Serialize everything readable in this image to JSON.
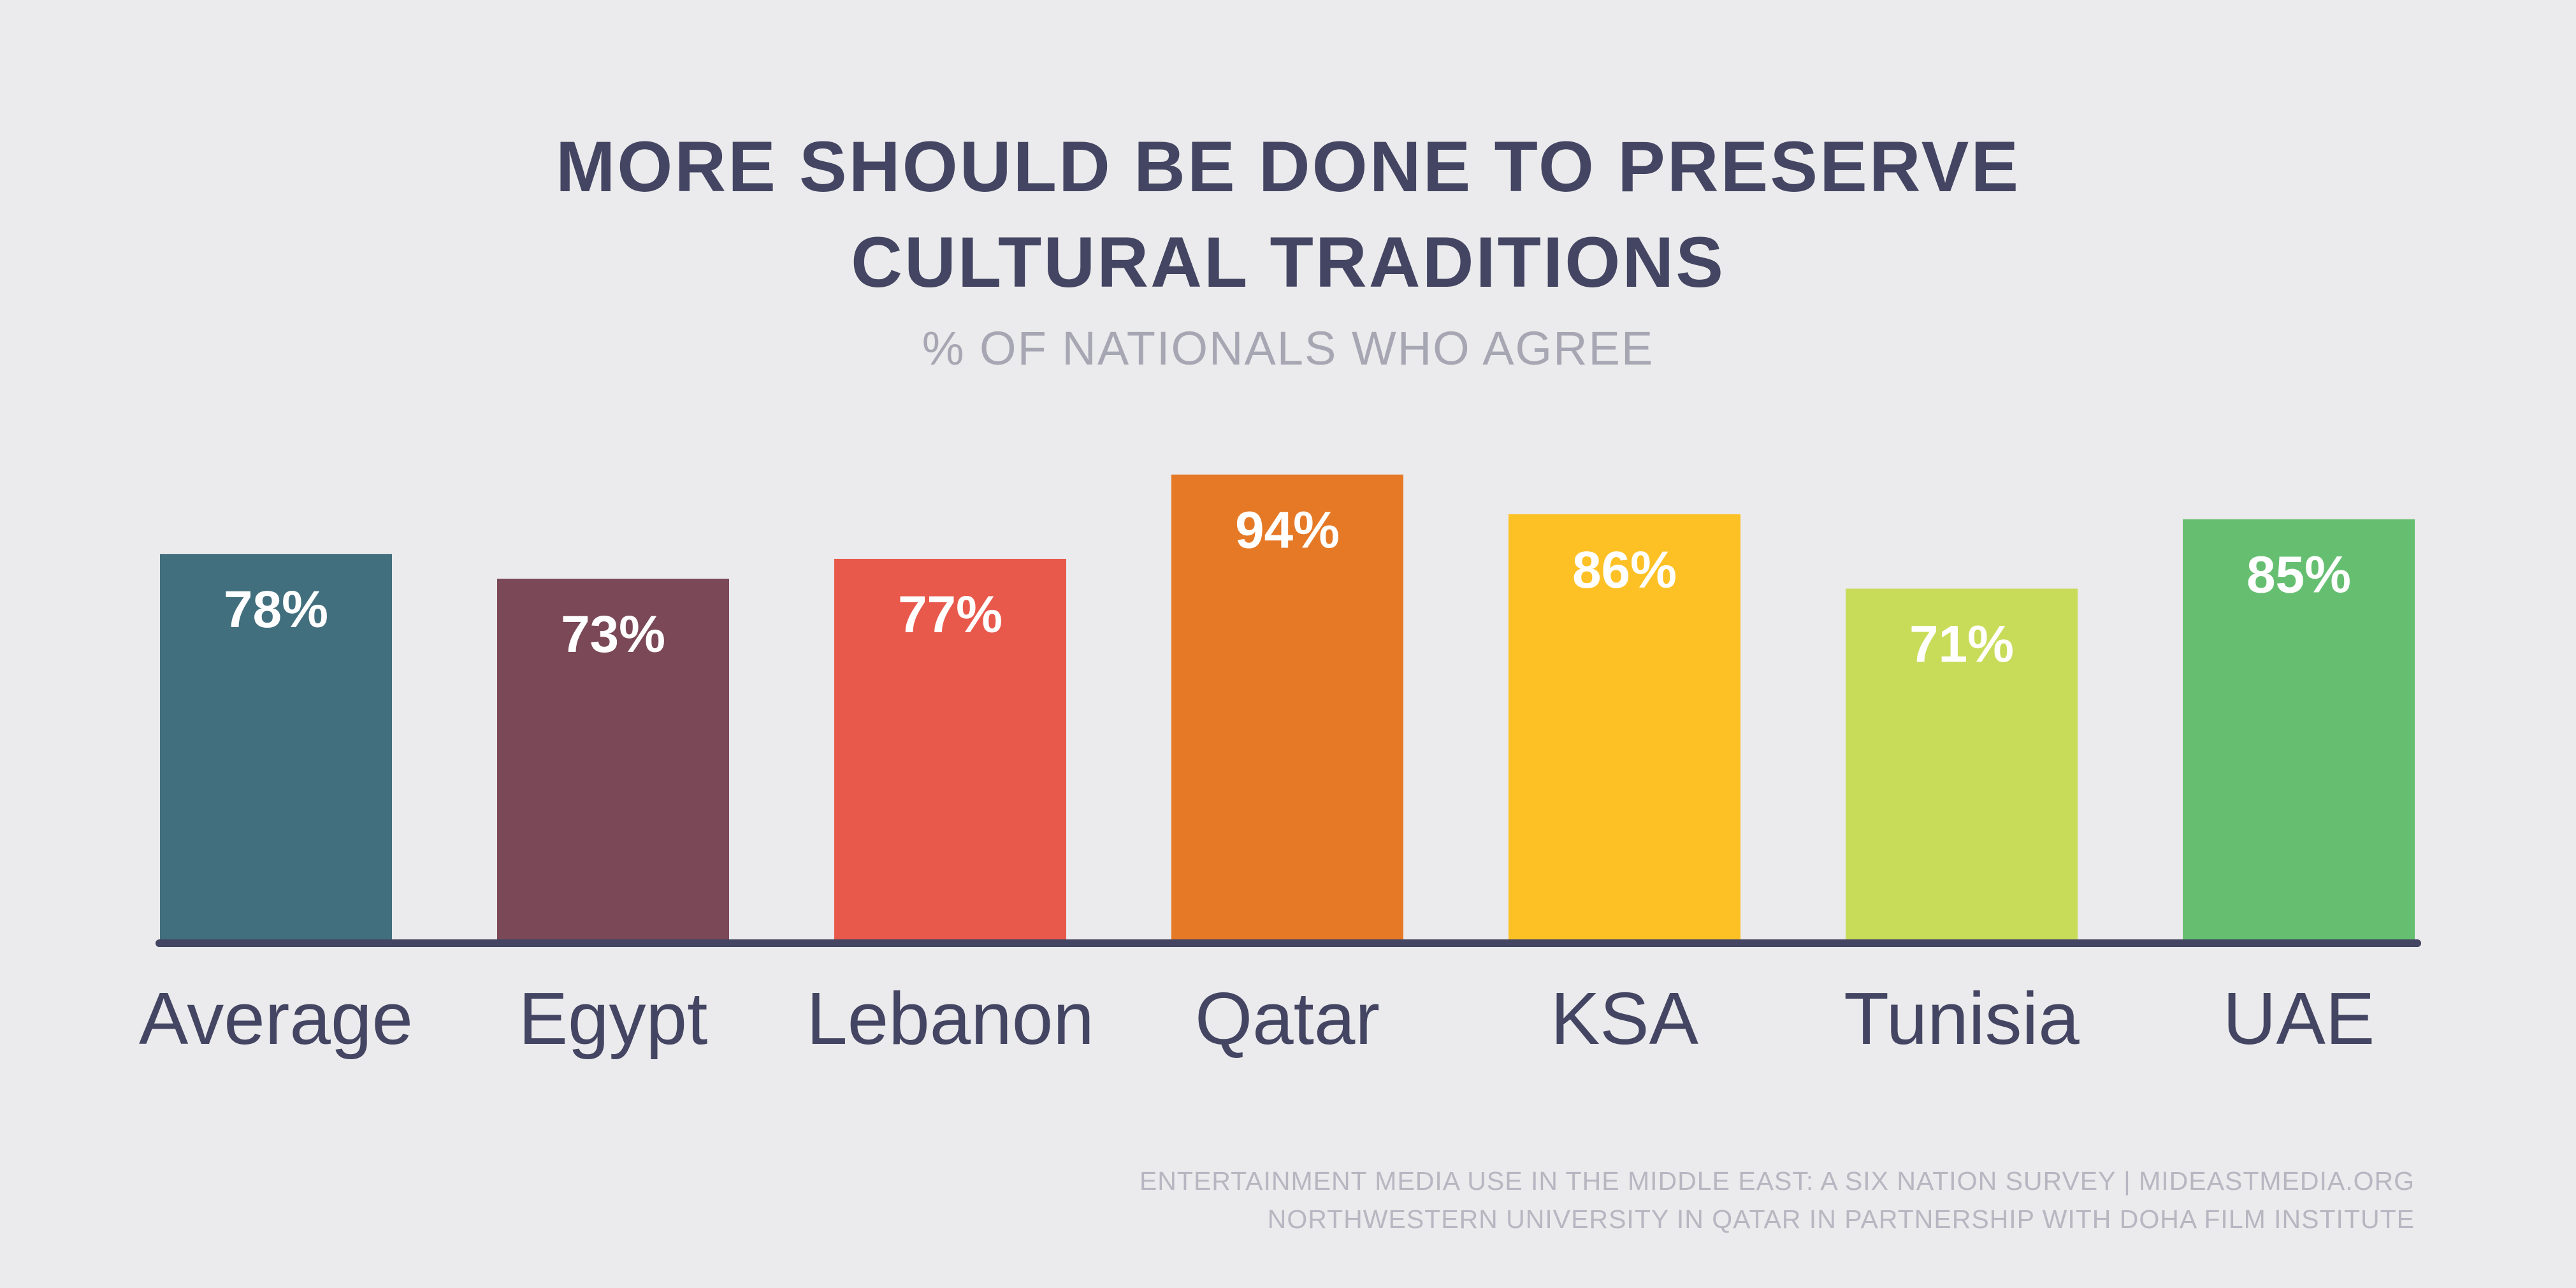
{
  "chart_data": {
    "type": "bar",
    "title_lines": [
      "MORE SHOULD BE DONE TO PRESERVE",
      "CULTURAL TRADITIONS"
    ],
    "subtitle": "% OF NATIONALS WHO AGREE",
    "categories": [
      "Average",
      "Egypt",
      "Lebanon",
      "Qatar",
      "KSA",
      "Tunisia",
      "UAE"
    ],
    "values": [
      78,
      73,
      77,
      94,
      86,
      71,
      85
    ],
    "value_labels": [
      "78%",
      "73%",
      "77%",
      "94%",
      "86%",
      "71%",
      "85%"
    ],
    "colors": [
      "#426F7E",
      "#7B4857",
      "#E8594C",
      "#E57926",
      "#FDC125",
      "#C9DC5A",
      "#66BF71"
    ],
    "axis_color": "#434562",
    "ylim": [
      0,
      100
    ],
    "grid": false,
    "legend": "none"
  },
  "footer": {
    "source_lines": [
      "ENTERTAINMENT MEDIA USE IN THE MIDDLE EAST: A SIX NATION SURVEY | MIDEASTMEDIA.ORG",
      "NORTHWESTERN UNIVERSITY IN QATAR IN PARTNERSHIP WITH DOHA FILM INSTITUTE"
    ]
  }
}
